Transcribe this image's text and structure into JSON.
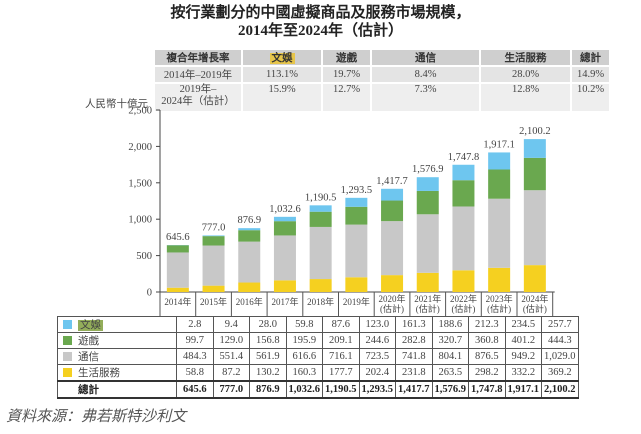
{
  "title_line1": "按行業劃分的中國虛擬商品及服務市場規模，",
  "title_line2": "2014年至2024年（估計）",
  "cagr_table": {
    "header": [
      "複合年增長率",
      "文娛",
      "遊戲",
      "通信",
      "生活服務",
      "總計"
    ],
    "rows": [
      {
        "period": "2014年–2019年",
        "values": [
          "113.1%",
          "19.7%",
          "8.4%",
          "28.0%",
          "14.9%"
        ]
      },
      {
        "period_line1": "2019年–",
        "period_line2": "2024年（估計）",
        "values": [
          "15.9%",
          "12.7%",
          "7.3%",
          "12.8%",
          "10.2%"
        ]
      }
    ]
  },
  "unit_label": "人民幣十億元",
  "source": "資料來源：弗若斯特沙利文",
  "colors": {
    "entertainment": "#6ec6ef",
    "games": "#6aa84f",
    "communication": "#c8c8c8",
    "life_services": "#f5d020",
    "highlight_yellow": "#e6c54a",
    "highlight_green": "#93ad5a"
  },
  "chart_data": {
    "type": "bar",
    "stacked": true,
    "title": "按行業劃分的中國虛擬商品及服務市場規模，2014年至2024年（估計）",
    "ylabel": "人民幣十億元",
    "xlabel": "",
    "ylim": [
      0,
      2500
    ],
    "yticks": [
      0,
      500,
      1000,
      1500,
      2000,
      2500
    ],
    "ytick_labels": [
      "0",
      "500",
      "1,000",
      "1,500",
      "2,000",
      "2,500"
    ],
    "grid": false,
    "categories": [
      "2014年",
      "2015年",
      "2016年",
      "2017年",
      "2018年",
      "2019年",
      "2020年",
      "2021年",
      "2022年",
      "2023年",
      "2024年"
    ],
    "category_sublabels": [
      "",
      "",
      "",
      "",
      "",
      "",
      "(估計)",
      "(估計)",
      "(估計)",
      "(估計)",
      "(估計)"
    ],
    "series": [
      {
        "name": "生活服務",
        "color": "#f5d020",
        "values": [
          58.8,
          87.2,
          130.2,
          160.3,
          177.7,
          202.4,
          231.8,
          263.5,
          298.2,
          332.2,
          369.2
        ]
      },
      {
        "name": "通信",
        "color": "#c8c8c8",
        "values": [
          484.3,
          551.4,
          561.9,
          616.6,
          716.1,
          723.5,
          741.8,
          804.1,
          876.5,
          949.2,
          1029.0
        ]
      },
      {
        "name": "遊戲",
        "color": "#6aa84f",
        "values": [
          99.7,
          129.0,
          156.8,
          195.9,
          209.1,
          244.6,
          282.8,
          320.7,
          360.8,
          401.2,
          444.3
        ]
      },
      {
        "name": "文娛",
        "color": "#6ec6ef",
        "values": [
          2.8,
          9.4,
          28.0,
          59.8,
          87.6,
          123.0,
          161.3,
          188.6,
          212.3,
          234.5,
          257.7
        ]
      }
    ],
    "totals": [
      645.6,
      777.0,
      876.9,
      1032.6,
      1190.5,
      1293.5,
      1417.7,
      1576.9,
      1747.8,
      1917.1,
      2100.2
    ],
    "total_labels": [
      "645.6",
      "777.0",
      "876.9",
      "1,032.6",
      "1,190.5",
      "1,293.5",
      "1,417.7",
      "1,576.9",
      "1,747.8",
      "1,917.1",
      "2,100.2"
    ],
    "legend": "table-left"
  },
  "data_table": {
    "rows": [
      {
        "label": "文娛",
        "color": "#6ec6ef",
        "highlight": true,
        "values": [
          "2.8",
          "9.4",
          "28.0",
          "59.8",
          "87.6",
          "123.0",
          "161.3",
          "188.6",
          "212.3",
          "234.5",
          "257.7"
        ]
      },
      {
        "label": "遊戲",
        "color": "#6aa84f",
        "values": [
          "99.7",
          "129.0",
          "156.8",
          "195.9",
          "209.1",
          "244.6",
          "282.8",
          "320.7",
          "360.8",
          "401.2",
          "444.3"
        ]
      },
      {
        "label": "通信",
        "color": "#c8c8c8",
        "values": [
          "484.3",
          "551.4",
          "561.9",
          "616.6",
          "716.1",
          "723.5",
          "741.8",
          "804.1",
          "876.5",
          "949.2",
          "1,029.0"
        ]
      },
      {
        "label": "生活服務",
        "color": "#f5d020",
        "values": [
          "58.8",
          "87.2",
          "130.2",
          "160.3",
          "177.7",
          "202.4",
          "231.8",
          "263.5",
          "298.2",
          "332.2",
          "369.2"
        ]
      }
    ],
    "total_row": {
      "label": "總計",
      "values": [
        "645.6",
        "777.0",
        "876.9",
        "1,032.6",
        "1,190.5",
        "1,293.5",
        "1,417.7",
        "1,576.9",
        "1,747.8",
        "1,917.1",
        "2,100.2"
      ]
    }
  }
}
